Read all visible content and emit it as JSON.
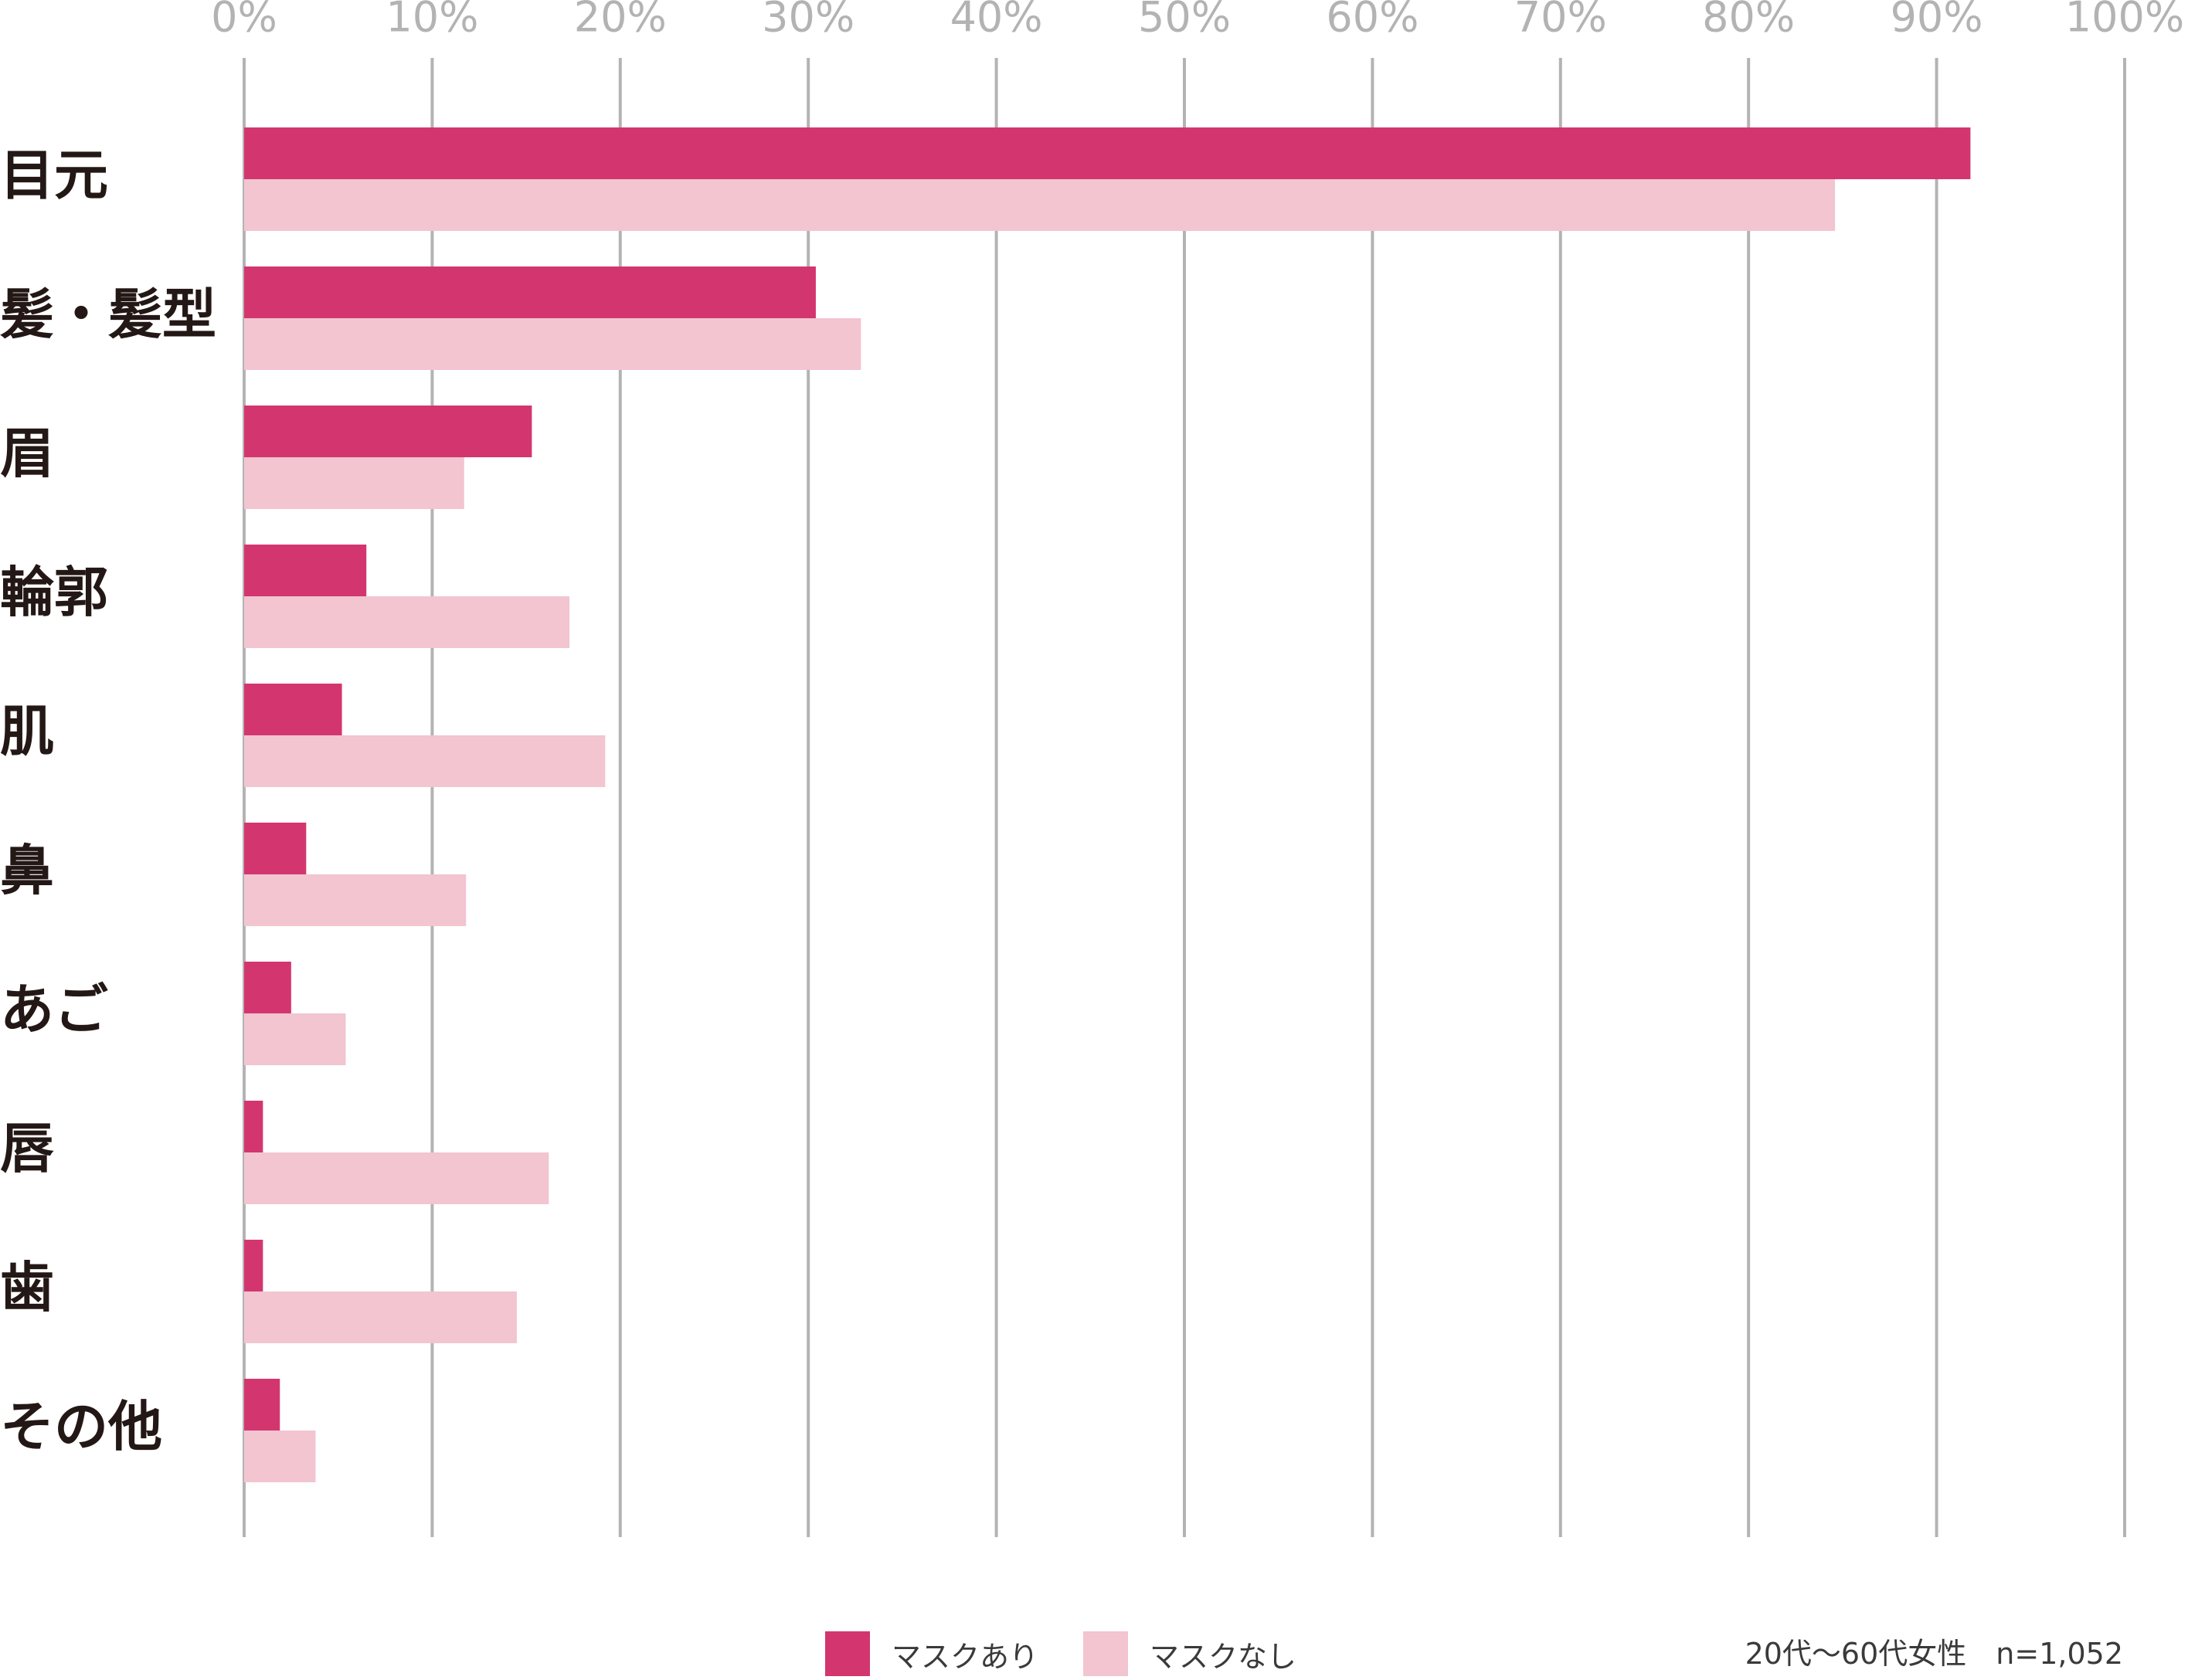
{
  "chart_data": {
    "type": "bar",
    "orientation": "horizontal",
    "categories": [
      "目元",
      "髪・髪型",
      "眉",
      "輪郭",
      "肌",
      "鼻",
      "あご",
      "唇",
      "歯",
      "その他"
    ],
    "series": [
      {
        "name": "マスクあり",
        "color": "#d3366f",
        "values": [
          91.8,
          30.4,
          15.3,
          6.5,
          5.2,
          3.3,
          2.5,
          1.0,
          1.0,
          1.9
        ]
      },
      {
        "name": "マスクなし",
        "color": "#f2c5d0",
        "values": [
          84.6,
          32.8,
          11.7,
          17.3,
          19.2,
          11.8,
          5.4,
          16.2,
          14.5,
          3.8
        ]
      }
    ],
    "xlim": [
      0,
      100
    ],
    "xticks": [
      "0%",
      "10%",
      "20%",
      "30%",
      "40%",
      "50%",
      "60%",
      "70%",
      "80%",
      "90%",
      "100%"
    ],
    "grid": true,
    "grid_color": "#b3b3b3",
    "tick_label_color": "#b3b3b3",
    "legend_position": "bottom-center",
    "note": "20代〜60代女性　n=1,052"
  }
}
